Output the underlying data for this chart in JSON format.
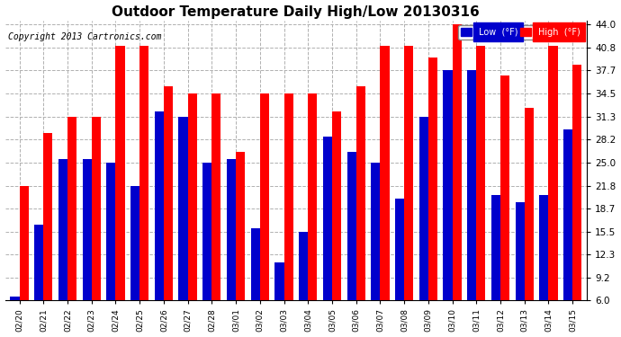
{
  "title": "Outdoor Temperature Daily High/Low 20130316",
  "copyright": "Copyright 2013 Cartronics.com",
  "legend_low": "Low  (°F)",
  "legend_high": "High  (°F)",
  "dates": [
    "02/20",
    "02/21",
    "02/22",
    "02/23",
    "02/24",
    "02/25",
    "02/26",
    "02/27",
    "02/28",
    "03/01",
    "03/02",
    "03/03",
    "03/04",
    "03/05",
    "03/06",
    "03/07",
    "03/08",
    "03/09",
    "03/10",
    "03/11",
    "03/12",
    "03/13",
    "03/14",
    "03/15"
  ],
  "high": [
    21.8,
    29.0,
    31.3,
    31.3,
    41.0,
    41.0,
    35.5,
    34.5,
    34.5,
    26.5,
    34.5,
    34.5,
    34.5,
    32.0,
    35.5,
    41.0,
    41.0,
    39.5,
    44.0,
    41.0,
    37.0,
    32.5,
    41.0,
    38.5
  ],
  "low": [
    6.5,
    16.5,
    25.5,
    25.5,
    25.0,
    21.8,
    32.0,
    31.3,
    25.0,
    25.5,
    16.0,
    11.2,
    15.5,
    28.5,
    26.5,
    25.0,
    20.0,
    31.3,
    37.7,
    37.7,
    20.5,
    19.5,
    20.5,
    29.5
  ],
  "ymin": 6.0,
  "ymax": 44.0,
  "yticks": [
    6.0,
    9.2,
    12.3,
    15.5,
    18.7,
    21.8,
    25.0,
    28.2,
    31.3,
    34.5,
    37.7,
    40.8,
    44.0
  ],
  "bar_color_high": "#ff0000",
  "bar_color_low": "#0000cc",
  "bg_color": "#ffffff",
  "grid_color": "#b0b0b0",
  "title_fontsize": 11,
  "copyright_fontsize": 7,
  "bar_width": 0.38
}
